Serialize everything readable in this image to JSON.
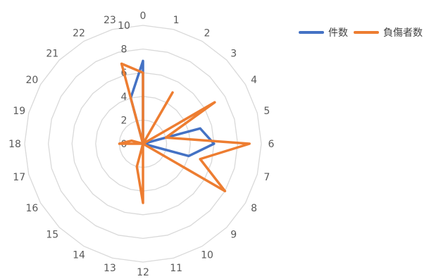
{
  "chart_data": {
    "type": "radar",
    "categories": [
      "0",
      "1",
      "2",
      "3",
      "4",
      "5",
      "6",
      "7",
      "8",
      "9",
      "10",
      "11",
      "12",
      "13",
      "14",
      "15",
      "16",
      "17",
      "18",
      "19",
      "20",
      "21",
      "22",
      "23"
    ],
    "r_ticks": [
      "0",
      "2",
      "4",
      "6",
      "8",
      "10"
    ],
    "rlim": [
      0,
      10
    ],
    "grid": true,
    "legend_position": "top-right",
    "series": [
      {
        "name": "件数",
        "color": "#4472C4",
        "values": [
          7,
          0,
          0,
          0,
          0,
          5,
          6,
          4,
          0,
          0,
          0,
          0,
          0,
          0,
          0,
          0,
          0,
          0,
          0,
          0,
          0,
          0,
          0,
          4
        ]
      },
      {
        "name": "負傷者数",
        "color": "#ED7D31",
        "values": [
          6,
          0,
          5,
          0,
          7,
          2,
          9,
          5,
          8,
          0,
          0,
          0,
          5,
          2,
          0,
          0,
          0,
          0,
          2,
          1,
          0,
          0,
          0,
          7
        ]
      }
    ]
  }
}
